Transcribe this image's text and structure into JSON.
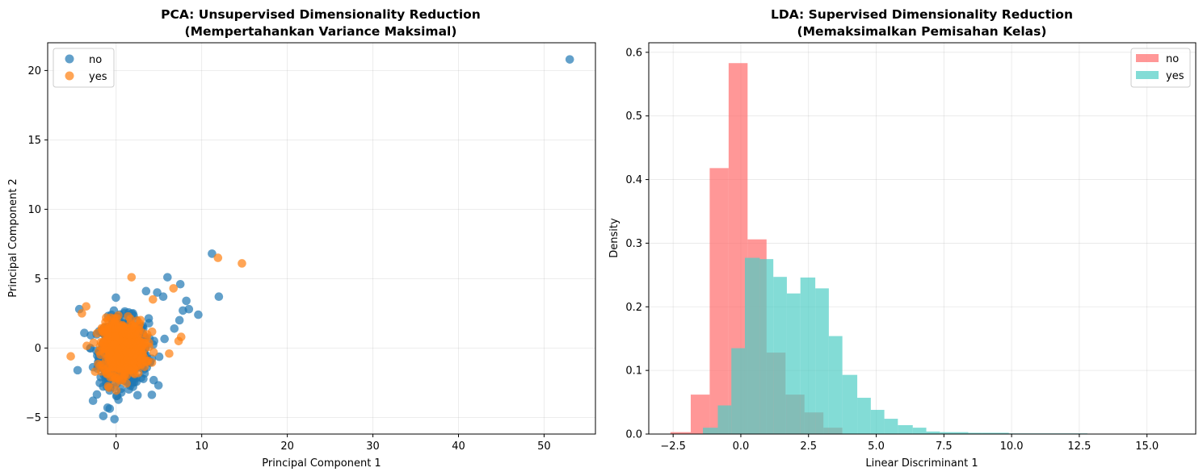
{
  "colors": {
    "pca_no": "#1f77b4",
    "pca_yes": "#ff7f0e",
    "lda_no": "#ff6b6b",
    "lda_yes": "#4ecdc4"
  },
  "chart_data": [
    {
      "type": "scatter",
      "title_line1": "PCA: Unsupervised Dimensionality Reduction",
      "title_line2": "(Mempertahankan Variance Maksimal)",
      "xlabel": "Principal Component 1",
      "ylabel": "Principal Component 2",
      "xlim": [
        -8,
        56
      ],
      "ylim": [
        -6.2,
        22
      ],
      "xticks": [
        0,
        10,
        20,
        30,
        40,
        50
      ],
      "yticks": [
        -5,
        0,
        5,
        10,
        15,
        20
      ],
      "grid": true,
      "legend_position": "upper-left",
      "series": [
        {
          "name": "no",
          "cluster": {
            "center": [
              0.5,
              -0.3
            ],
            "spread": [
              2.2,
              1.6
            ],
            "count": 700
          },
          "points": [
            [
              53,
              20.8
            ],
            [
              11.2,
              6.8
            ],
            [
              12,
              3.7
            ],
            [
              9.6,
              2.4
            ],
            [
              8.5,
              2.8
            ],
            [
              7.5,
              4.6
            ],
            [
              6,
              5.1
            ],
            [
              8.2,
              3.4
            ],
            [
              7.8,
              2.7
            ],
            [
              -4.3,
              2.8
            ],
            [
              -4.5,
              -1.6
            ],
            [
              -1.5,
              -4.9
            ],
            [
              -1,
              -4.3
            ],
            [
              2.5,
              -3.4
            ],
            [
              4.8,
              4.0
            ],
            [
              5.5,
              3.7
            ],
            [
              3.5,
              4.1
            ],
            [
              -2.7,
              -3.8
            ],
            [
              7.4,
              2.0
            ],
            [
              6.8,
              1.4
            ]
          ]
        },
        {
          "name": "yes",
          "cluster": {
            "center": [
              0.5,
              0.0
            ],
            "spread": [
              1.9,
              1.3
            ],
            "count": 500
          },
          "points": [
            [
              11.9,
              6.5
            ],
            [
              14.7,
              6.1
            ],
            [
              1.8,
              5.1
            ],
            [
              -5.3,
              -0.6
            ],
            [
              6.7,
              4.3
            ],
            [
              7.6,
              0.8
            ],
            [
              7.3,
              0.5
            ],
            [
              6.2,
              -0.4
            ],
            [
              4.3,
              3.5
            ],
            [
              -4.0,
              2.5
            ],
            [
              -3.5,
              3.0
            ]
          ]
        }
      ]
    },
    {
      "type": "bar",
      "subtype": "histogram",
      "title_line1": "LDA: Supervised Dimensionality Reduction",
      "title_line2": "(Memaksimalkan Pemisahan Kelas)",
      "xlabel": "Linear Discriminant 1",
      "ylabel": "Density",
      "xlim": [
        -3.4,
        16.8
      ],
      "ylim": [
        0,
        0.615
      ],
      "xticks": [
        -2.5,
        0.0,
        2.5,
        5.0,
        7.5,
        10.0,
        12.5,
        15.0
      ],
      "xtick_labels": [
        "−2.5",
        "0.0",
        "2.5",
        "5.0",
        "7.5",
        "10.0",
        "12.5",
        "15.0"
      ],
      "yticks": [
        0.0,
        0.1,
        0.2,
        0.3,
        0.4,
        0.5,
        0.6
      ],
      "ytick_labels": [
        "0.0",
        "0.1",
        "0.2",
        "0.3",
        "0.4",
        "0.5",
        "0.6"
      ],
      "grid": true,
      "legend_position": "upper-right",
      "series": [
        {
          "name": "no",
          "bin_edges": [
            -2.6,
            -1.85,
            -1.15,
            -0.45,
            0.25,
            0.95,
            1.65,
            2.35,
            3.05,
            3.75
          ],
          "values": [
            0.003,
            0.062,
            0.418,
            0.583,
            0.306,
            0.128,
            0.062,
            0.034,
            0.01
          ]
        },
        {
          "name": "yes",
          "bin_edges": [
            -1.4,
            -0.85,
            -0.35,
            0.15,
            0.7,
            1.2,
            1.7,
            2.2,
            2.75,
            3.25,
            3.75,
            4.3,
            4.8,
            5.3,
            5.8,
            6.35,
            6.85,
            7.35,
            7.85,
            8.4,
            8.9,
            9.4,
            9.9,
            10.45,
            12.5,
            12.8
          ],
          "values": [
            0.01,
            0.045,
            0.135,
            0.277,
            0.275,
            0.247,
            0.221,
            0.246,
            0.229,
            0.154,
            0.093,
            0.057,
            0.038,
            0.024,
            0.014,
            0.01,
            0.004,
            0.003,
            0.003,
            0.002,
            0.002,
            0.002,
            0.001,
            0.001,
            0.001
          ]
        }
      ]
    }
  ]
}
